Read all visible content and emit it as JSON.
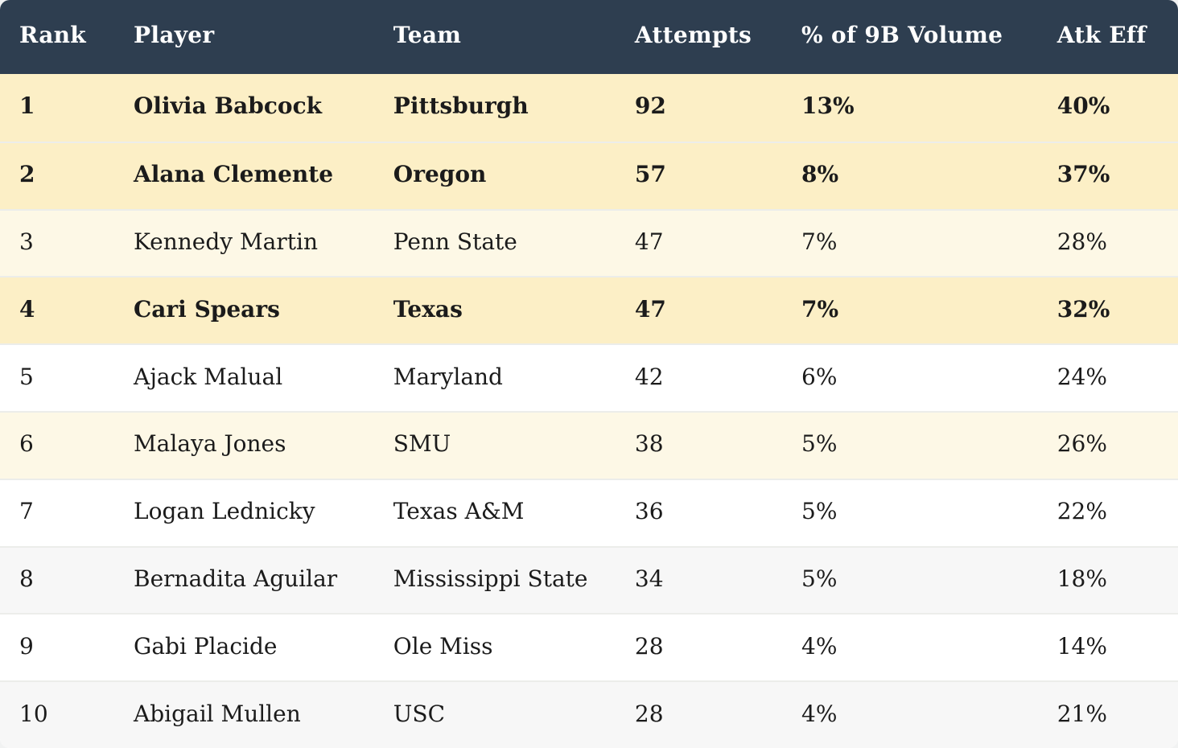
{
  "table": {
    "columns": [
      {
        "key": "rank",
        "label": "Rank"
      },
      {
        "key": "player",
        "label": "Player"
      },
      {
        "key": "team",
        "label": "Team"
      },
      {
        "key": "attempts",
        "label": "Attempts"
      },
      {
        "key": "pct_volume",
        "label": "% of 9B Volume"
      },
      {
        "key": "atk_eff",
        "label": "Atk Eff"
      }
    ],
    "rows": [
      {
        "rank": "1",
        "player": "Olivia Babcock",
        "team": "Pittsburgh",
        "attempts": "92",
        "pct_volume": "13%",
        "atk_eff": "40%",
        "emphasis": "bold",
        "tint": "strong"
      },
      {
        "rank": "2",
        "player": "Alana Clemente",
        "team": "Oregon",
        "attempts": "57",
        "pct_volume": "8%",
        "atk_eff": "37%",
        "emphasis": "bold",
        "tint": "strong"
      },
      {
        "rank": "3",
        "player": "Kennedy Martin",
        "team": "Penn State",
        "attempts": "47",
        "pct_volume": "7%",
        "atk_eff": "28%",
        "emphasis": "normal",
        "tint": "light"
      },
      {
        "rank": "4",
        "player": "Cari Spears",
        "team": "Texas",
        "attempts": "47",
        "pct_volume": "7%",
        "atk_eff": "32%",
        "emphasis": "bold",
        "tint": "strong"
      },
      {
        "rank": "5",
        "player": "Ajack Malual",
        "team": "Maryland",
        "attempts": "42",
        "pct_volume": "6%",
        "atk_eff": "24%",
        "emphasis": "normal",
        "tint": "white"
      },
      {
        "rank": "6",
        "player": "Malaya Jones",
        "team": "SMU",
        "attempts": "38",
        "pct_volume": "5%",
        "atk_eff": "26%",
        "emphasis": "normal",
        "tint": "light"
      },
      {
        "rank": "7",
        "player": "Logan Lednicky",
        "team": "Texas A&M",
        "attempts": "36",
        "pct_volume": "5%",
        "atk_eff": "22%",
        "emphasis": "normal",
        "tint": "white"
      },
      {
        "rank": "8",
        "player": "Bernadita Aguilar",
        "team": "Mississippi State",
        "attempts": "34",
        "pct_volume": "5%",
        "atk_eff": "18%",
        "emphasis": "normal",
        "tint": "gray"
      },
      {
        "rank": "9",
        "player": "Gabi Placide",
        "team": "Ole Miss",
        "attempts": "28",
        "pct_volume": "4%",
        "atk_eff": "14%",
        "emphasis": "normal",
        "tint": "white"
      },
      {
        "rank": "10",
        "player": "Abigail Mullen",
        "team": "USC",
        "attempts": "28",
        "pct_volume": "4%",
        "atk_eff": "21%",
        "emphasis": "normal",
        "tint": "gray"
      }
    ]
  },
  "colors": {
    "header_bg": "#2e3e50",
    "header_text": "#ffffff",
    "highlight_strong": "#fcefc6",
    "highlight_light": "#fdf8e6",
    "row_gray": "#f7f7f7",
    "row_white": "#ffffff",
    "divider": "#ecedea",
    "body_text": "#1b1b1b",
    "page_bg": "#f1f2f2"
  },
  "chart_data": {
    "type": "table",
    "columns": [
      "Rank",
      "Player",
      "Team",
      "Attempts",
      "% of 9B Volume",
      "Atk Eff"
    ],
    "rows": [
      [
        "1",
        "Olivia Babcock",
        "Pittsburgh",
        92,
        "13%",
        "40%"
      ],
      [
        "2",
        "Alana Clemente",
        "Oregon",
        57,
        "8%",
        "37%"
      ],
      [
        "3",
        "Kennedy Martin",
        "Penn State",
        47,
        "7%",
        "28%"
      ],
      [
        "4",
        "Cari Spears",
        "Texas",
        47,
        "7%",
        "32%"
      ],
      [
        "5",
        "Ajack Malual",
        "Maryland",
        42,
        "6%",
        "24%"
      ],
      [
        "6",
        "Malaya Jones",
        "SMU",
        38,
        "5%",
        "26%"
      ],
      [
        "7",
        "Logan Lednicky",
        "Texas A&M",
        36,
        "5%",
        "22%"
      ],
      [
        "8",
        "Bernadita Aguilar",
        "Mississippi State",
        34,
        "5%",
        "18%"
      ],
      [
        "9",
        "Gabi Placide",
        "Ole Miss",
        28,
        "4%",
        "14%"
      ],
      [
        "10",
        "Abigail Mullen",
        "USC",
        28,
        "4%",
        "21%"
      ]
    ],
    "bold_highlighted_ranks": [
      "1",
      "2",
      "4"
    ],
    "light_highlighted_ranks": [
      "3",
      "6"
    ]
  }
}
